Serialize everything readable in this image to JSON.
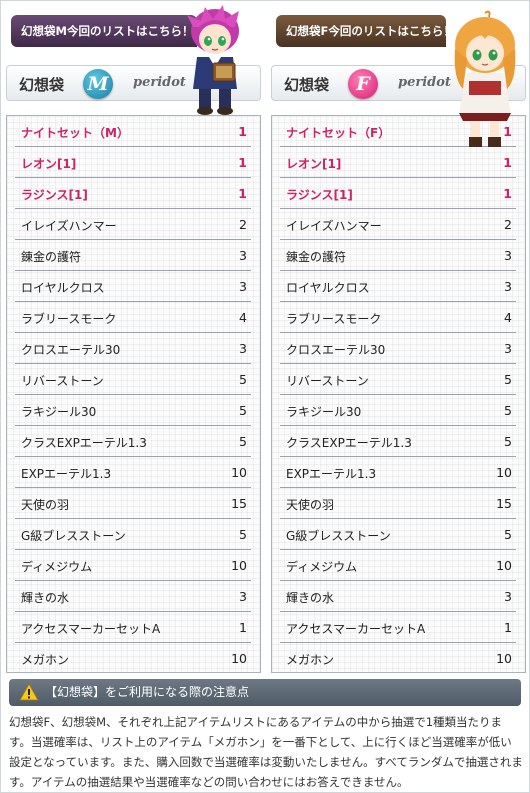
{
  "left_panel": {
    "tab_label": "幻想袋M今回のリストはこちら！",
    "title": "幻想袋",
    "badge_letter": "M",
    "brand": "peridot",
    "accent": "#1a7ea3",
    "items": [
      {
        "name": "ナイトセット（M）",
        "qty": "1",
        "highlight": true
      },
      {
        "name": "レオン[1]",
        "qty": "1",
        "highlight": true
      },
      {
        "name": "ラジンス[1]",
        "qty": "1",
        "highlight": true
      },
      {
        "name": "イレイズハンマー",
        "qty": "2",
        "highlight": false
      },
      {
        "name": "錬金の護符",
        "qty": "3",
        "highlight": false
      },
      {
        "name": "ロイヤルクロス",
        "qty": "3",
        "highlight": false
      },
      {
        "name": "ラブリースモーク",
        "qty": "4",
        "highlight": false
      },
      {
        "name": "クロスエーテル30",
        "qty": "3",
        "highlight": false
      },
      {
        "name": "リバーストーン",
        "qty": "5",
        "highlight": false
      },
      {
        "name": "ラキジール30",
        "qty": "5",
        "highlight": false
      },
      {
        "name": "クラスEXPエーテル1.3",
        "qty": "5",
        "highlight": false
      },
      {
        "name": "EXPエーテル1.3",
        "qty": "10",
        "highlight": false
      },
      {
        "name": "天使の羽",
        "qty": "15",
        "highlight": false
      },
      {
        "name": "G級ブレスストーン",
        "qty": "5",
        "highlight": false
      },
      {
        "name": "ディメジウム",
        "qty": "10",
        "highlight": false
      },
      {
        "name": "輝きの水",
        "qty": "3",
        "highlight": false
      },
      {
        "name": "アクセスマーカーセットA",
        "qty": "1",
        "highlight": false
      },
      {
        "name": "メガホン",
        "qty": "10",
        "highlight": false
      }
    ]
  },
  "right_panel": {
    "tab_label": "幻想袋F今回のリストはこちら！",
    "title": "幻想袋",
    "badge_letter": "F",
    "brand": "peridot",
    "accent": "#d61f73",
    "items": [
      {
        "name": "ナイトセット（F）",
        "qty": "1",
        "highlight": true
      },
      {
        "name": "レオン[1]",
        "qty": "1",
        "highlight": true
      },
      {
        "name": "ラジンス[1]",
        "qty": "1",
        "highlight": true
      },
      {
        "name": "イレイズハンマー",
        "qty": "2",
        "highlight": false
      },
      {
        "name": "錬金の護符",
        "qty": "3",
        "highlight": false
      },
      {
        "name": "ロイヤルクロス",
        "qty": "3",
        "highlight": false
      },
      {
        "name": "ラブリースモーク",
        "qty": "4",
        "highlight": false
      },
      {
        "name": "クロスエーテル30",
        "qty": "3",
        "highlight": false
      },
      {
        "name": "リバーストーン",
        "qty": "5",
        "highlight": false
      },
      {
        "name": "ラキジール30",
        "qty": "5",
        "highlight": false
      },
      {
        "name": "クラスEXPエーテル1.3",
        "qty": "5",
        "highlight": false
      },
      {
        "name": "EXPエーテル1.3",
        "qty": "10",
        "highlight": false
      },
      {
        "name": "天使の羽",
        "qty": "15",
        "highlight": false
      },
      {
        "name": "G級ブレスストーン",
        "qty": "5",
        "highlight": false
      },
      {
        "name": "ディメジウム",
        "qty": "10",
        "highlight": false
      },
      {
        "name": "輝きの水",
        "qty": "3",
        "highlight": false
      },
      {
        "name": "アクセスマーカーセットA",
        "qty": "1",
        "highlight": false
      },
      {
        "name": "メガホン",
        "qty": "10",
        "highlight": false
      }
    ]
  },
  "notice": {
    "icon": "warning-icon",
    "heading": "【幻想袋】をご利用になる際の注意点",
    "body": "幻想袋F、幻想袋M、それぞれ上記アイテムリストにあるアイテムの中から抽選で1種類当たります。当選確率は、リスト上のアイテム「メガホン」を一番下として、上に行くほど当選確率が低い設定となっています。また、購入回数で当選確率は変動いたしません。すべてランダムで抽選されます。アイテムの抽選結果や当選確率などの問い合わせにはお答えできません。"
  },
  "colors": {
    "highlight_text": "#cc2266",
    "notice_bar": "#56636e"
  }
}
